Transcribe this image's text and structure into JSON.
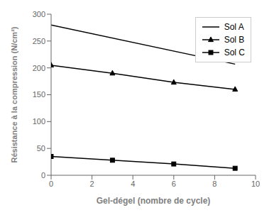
{
  "chart_data": {
    "type": "line",
    "xlabel": "Gel-dégel (nombre de cycle)",
    "ylabel": "Résistance à la compression (N/cm²)",
    "xlim": [
      0,
      10
    ],
    "ylim": [
      0,
      300
    ],
    "xticks": [
      0,
      2,
      4,
      6,
      8,
      10
    ],
    "yticks": [
      0,
      50,
      100,
      150,
      200,
      250,
      300
    ],
    "grid": false,
    "legend": "upper right",
    "series": [
      {
        "name": "Sol A",
        "color": "#000000",
        "marker": "none",
        "line_style": "solid",
        "x": [
          0,
          9
        ],
        "values": [
          280,
          207
        ]
      },
      {
        "name": "Sol B",
        "color": "#000000",
        "marker": "triangle",
        "line_style": "solid",
        "x": [
          0,
          3,
          6,
          9
        ],
        "values": [
          205,
          190,
          173,
          160
        ]
      },
      {
        "name": "Sol C",
        "color": "#000000",
        "marker": "square",
        "line_style": "solid",
        "x": [
          0,
          3,
          6,
          9
        ],
        "values": [
          35,
          28,
          21,
          13
        ]
      }
    ]
  }
}
